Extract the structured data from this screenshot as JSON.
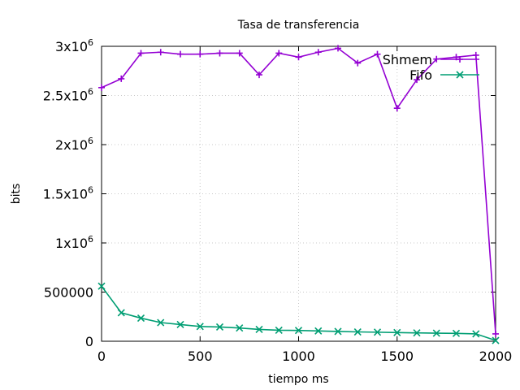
{
  "chart_data": {
    "type": "line",
    "title": "Tasa de transferencia",
    "xlabel": "tiempo ms",
    "ylabel": "bits",
    "xlim": [
      0,
      2000
    ],
    "ylim": [
      0,
      3000000
    ],
    "grid": true,
    "legend_position": "top-right",
    "x_ticks": [
      0,
      500,
      1000,
      1500,
      2000
    ],
    "x_tick_labels": [
      "0",
      "500",
      "1000",
      "1500",
      "2000"
    ],
    "y_ticks": [
      0,
      500000,
      1000000,
      1500000,
      2000000,
      2500000,
      3000000
    ],
    "y_tick_labels": [
      {
        "base": "0",
        "exp": ""
      },
      {
        "base": "500000",
        "exp": ""
      },
      {
        "base": "1x10",
        "exp": "6"
      },
      {
        "base": "1.5x10",
        "exp": "6"
      },
      {
        "base": "2x10",
        "exp": "6"
      },
      {
        "base": "2.5x10",
        "exp": "6"
      },
      {
        "base": "3x10",
        "exp": "6"
      }
    ],
    "series": [
      {
        "name": "Shmem",
        "color": "#9400d3",
        "marker": "plus",
        "x": [
          0,
          100,
          200,
          300,
          400,
          500,
          600,
          700,
          800,
          900,
          1000,
          1100,
          1200,
          1300,
          1400,
          1500,
          1600,
          1700,
          1800,
          1900,
          2000
        ],
        "y": [
          2580000,
          2670000,
          2930000,
          2940000,
          2920000,
          2920000,
          2930000,
          2930000,
          2710000,
          2930000,
          2890000,
          2940000,
          2980000,
          2830000,
          2920000,
          2370000,
          2660000,
          2870000,
          2890000,
          2910000,
          75000
        ]
      },
      {
        "name": "Fifo",
        "color": "#009e73",
        "marker": "cross",
        "x": [
          0,
          100,
          200,
          300,
          400,
          500,
          600,
          700,
          800,
          900,
          1000,
          1100,
          1200,
          1300,
          1400,
          1500,
          1600,
          1700,
          1800,
          1900,
          2000
        ],
        "y": [
          560000,
          290000,
          235000,
          190000,
          170000,
          150000,
          145000,
          135000,
          120000,
          112000,
          110000,
          105000,
          100000,
          95000,
          92000,
          88000,
          85000,
          82000,
          80000,
          75000,
          8000
        ]
      }
    ]
  }
}
